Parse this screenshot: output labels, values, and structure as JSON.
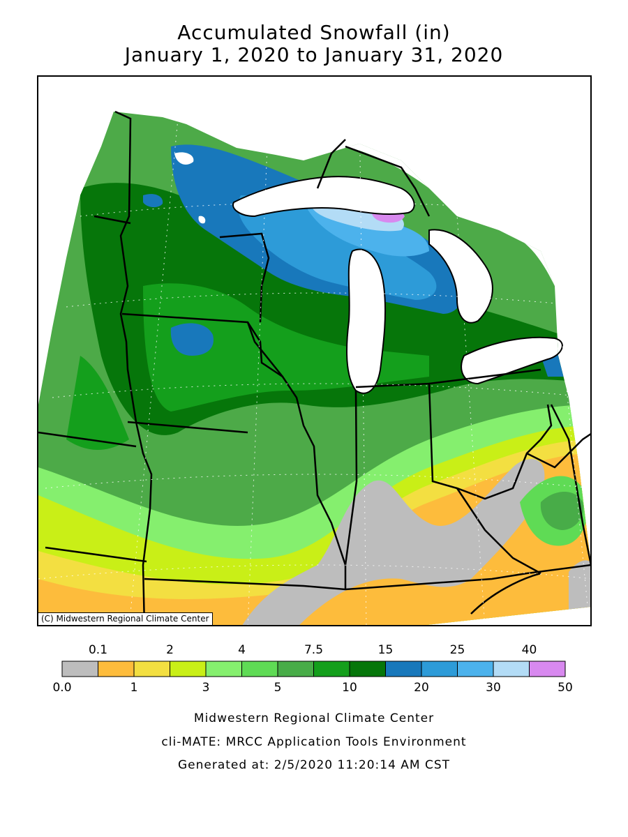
{
  "title": "Accumulated Snowfall (in)",
  "subtitle": "January 1, 2020 to January 31, 2020",
  "credit": "(C) Midwestern Regional Climate Center",
  "legend": {
    "top_labels": [
      "0.1",
      "2",
      "4",
      "7.5",
      "15",
      "25",
      "40"
    ],
    "bottom_labels": [
      "0.0",
      "1",
      "3",
      "5",
      "10",
      "20",
      "30",
      "50"
    ],
    "colors": [
      "#bdbdbd",
      "#fdbc3c",
      "#f3df41",
      "#c9ef17",
      "#85ef6e",
      "#5fdb55",
      "#48ac48",
      "#149f1c",
      "#06760a",
      "#1878bb",
      "#2d9bd8",
      "#4cb2ec",
      "#b3dcf6",
      "#d889ef"
    ]
  },
  "footer": {
    "line1": "Midwestern Regional Climate Center",
    "line2": "cli-MATE: MRCC Application Tools Environment",
    "line3": "Generated at: 2/5/2020 11:20:14 AM CST"
  }
}
